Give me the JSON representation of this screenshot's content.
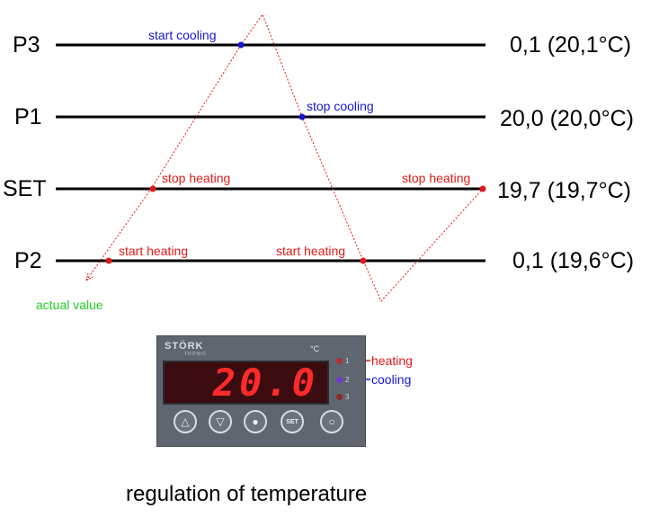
{
  "rows": [
    {
      "name": "P3",
      "value": "0,1 (20,1°C)"
    },
    {
      "name": "P1",
      "value": "20,0 (20,0°C)"
    },
    {
      "name": "SET",
      "value": "19,7 (19,7°C)"
    },
    {
      "name": "P2",
      "value": "0,1 (19,6°C)"
    }
  ],
  "points": {
    "start_cooling": "start cooling",
    "stop_cooling": "stop cooling",
    "stop_heating_left": "stop heating",
    "stop_heating_right": "stop heating",
    "start_heating_left": "start heating",
    "start_heating_right": "start heating",
    "actual_value": "actual value"
  },
  "device": {
    "brand": "STÖRK",
    "brand_sub": "TRONIC",
    "unit": "°C",
    "display": "20.0",
    "led_labels": {
      "heating": "heating",
      "cooling": "cooling"
    },
    "led_numbers": [
      "1",
      "2",
      "3"
    ],
    "buttons": [
      "△",
      "▽",
      "●",
      "SET",
      "○"
    ]
  },
  "caption": "regulation of temperature",
  "colors": {
    "cooling": "#1515d6",
    "heating": "#e01818",
    "actual": "#22cc22",
    "line": "#000000"
  }
}
